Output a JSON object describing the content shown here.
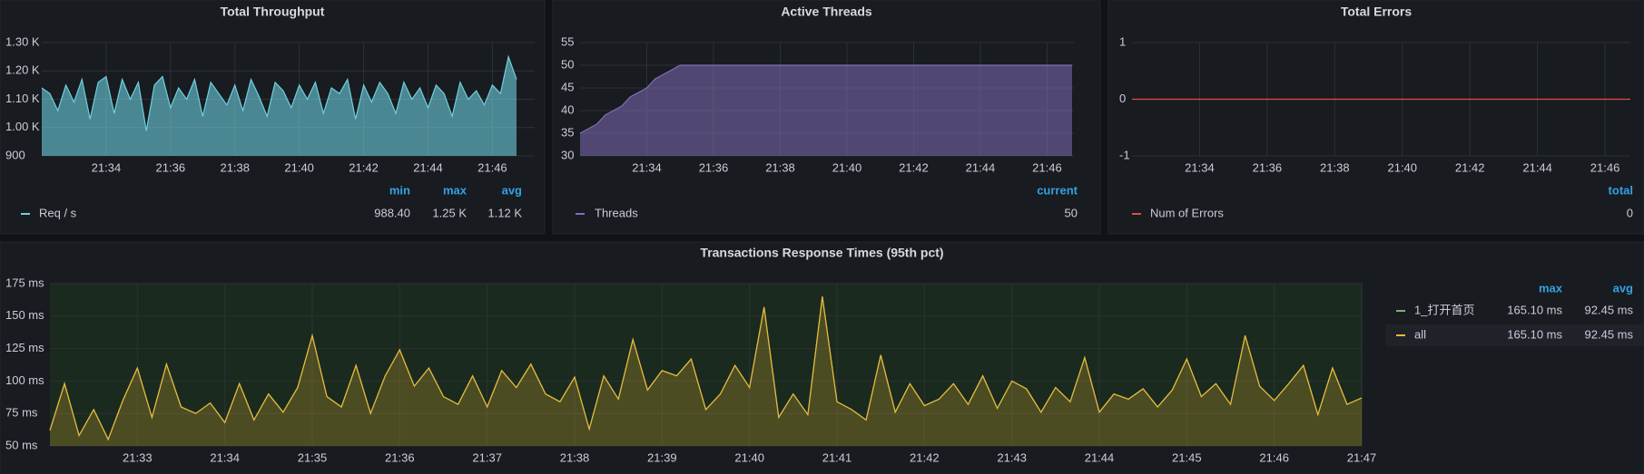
{
  "chart_data": [
    {
      "type": "area",
      "title": "Total Throughput",
      "categories": [
        null,
        null,
        null,
        null,
        null,
        null,
        null,
        null,
        "21:34",
        null,
        null,
        null,
        null,
        null,
        null,
        null,
        "21:36",
        null,
        null,
        null,
        null,
        null,
        null,
        null,
        "21:38",
        null,
        null,
        null,
        null,
        null,
        null,
        null,
        "21:40",
        null,
        null,
        null,
        null,
        null,
        null,
        null,
        "21:42",
        null,
        null,
        null,
        null,
        null,
        null,
        null,
        "21:44",
        null,
        null,
        null,
        null,
        null,
        null,
        null,
        "21:46",
        null,
        null,
        null
      ],
      "series": [
        {
          "name": "Req / s",
          "color": "#6ed0e0",
          "values": [
            1140,
            1120,
            1060,
            1150,
            1090,
            1170,
            1030,
            1160,
            1180,
            1050,
            1170,
            1100,
            1160,
            988.4,
            1150,
            1180,
            1070,
            1140,
            1100,
            1170,
            1040,
            1160,
            1120,
            1080,
            1150,
            1060,
            1170,
            1110,
            1040,
            1160,
            1130,
            1070,
            1150,
            1100,
            1160,
            1050,
            1140,
            1120,
            1170,
            1030,
            1150,
            1090,
            1160,
            1120,
            1050,
            1160,
            1100,
            1140,
            1070,
            1150,
            1120,
            1040,
            1160,
            1100,
            1130,
            1080,
            1150,
            1120,
            1250,
            1170
          ],
          "stats": [
            "988.40",
            "1.25 K",
            "1.12 K"
          ]
        }
      ],
      "legend_columns": [
        "min",
        "max",
        "avg"
      ],
      "ylim": [
        900,
        1300
      ],
      "yticks": [
        900,
        {
          "value": 1000,
          "label": "1.00 K"
        },
        {
          "value": 1100,
          "label": "1.10 K"
        },
        {
          "value": 1200,
          "label": "1.20 K"
        },
        {
          "value": 1300,
          "label": "1.30 K"
        }
      ],
      "grid": true
    },
    {
      "type": "area",
      "title": "Active Threads",
      "categories": [
        null,
        null,
        null,
        null,
        null,
        null,
        null,
        null,
        "21:34",
        null,
        null,
        null,
        null,
        null,
        null,
        null,
        "21:36",
        null,
        null,
        null,
        null,
        null,
        null,
        null,
        "21:38",
        null,
        null,
        null,
        null,
        null,
        null,
        null,
        "21:40",
        null,
        null,
        null,
        null,
        null,
        null,
        null,
        "21:42",
        null,
        null,
        null,
        null,
        null,
        null,
        null,
        "21:44",
        null,
        null,
        null,
        null,
        null,
        null,
        null,
        "21:46",
        null,
        null,
        null
      ],
      "series": [
        {
          "name": "Threads",
          "color": "#806eb7",
          "values": [
            35,
            36,
            37,
            39,
            40,
            41,
            43,
            44,
            45,
            47,
            48,
            49,
            50,
            50,
            50,
            50,
            50,
            50,
            50,
            50,
            50,
            50,
            50,
            50,
            50,
            50,
            50,
            50,
            50,
            50,
            50,
            50,
            50,
            50,
            50,
            50,
            50,
            50,
            50,
            50,
            50,
            50,
            50,
            50,
            50,
            50,
            50,
            50,
            50,
            50,
            50,
            50,
            50,
            50,
            50,
            50,
            50,
            50,
            50,
            50
          ],
          "stats": [
            "50"
          ]
        }
      ],
      "legend_columns": [
        "current"
      ],
      "ylim": [
        30,
        55
      ],
      "yticks": [
        30,
        35,
        40,
        45,
        50,
        55
      ],
      "grid": true
    },
    {
      "type": "line",
      "title": "Total Errors",
      "categories": [
        null,
        null,
        null,
        null,
        null,
        null,
        null,
        null,
        "21:34",
        null,
        null,
        null,
        null,
        null,
        null,
        null,
        "21:36",
        null,
        null,
        null,
        null,
        null,
        null,
        null,
        "21:38",
        null,
        null,
        null,
        null,
        null,
        null,
        null,
        "21:40",
        null,
        null,
        null,
        null,
        null,
        null,
        null,
        "21:42",
        null,
        null,
        null,
        null,
        null,
        null,
        null,
        "21:44",
        null,
        null,
        null,
        null,
        null,
        null,
        null,
        "21:46",
        null,
        null,
        null
      ],
      "series": [
        {
          "name": "Num of Errors",
          "color": "#e24d42",
          "values": [
            0,
            0,
            0,
            0,
            0,
            0,
            0,
            0,
            0,
            0,
            0,
            0,
            0,
            0,
            0,
            0,
            0,
            0,
            0,
            0,
            0,
            0,
            0,
            0,
            0,
            0,
            0,
            0,
            0,
            0,
            0,
            0,
            0,
            0,
            0,
            0,
            0,
            0,
            0,
            0,
            0,
            0,
            0,
            0,
            0,
            0,
            0,
            0,
            0,
            0,
            0,
            0,
            0,
            0,
            0,
            0,
            0,
            0,
            0,
            0
          ],
          "stats": [
            "0"
          ]
        }
      ],
      "legend_columns": [
        "total"
      ],
      "ylim": [
        -1,
        1
      ],
      "yticks": [
        -1,
        0,
        1
      ],
      "grid": true
    },
    {
      "type": "area",
      "title": "Transactions Response Times (95th pct)",
      "categories": [
        null,
        null,
        null,
        null,
        null,
        null,
        "21:33",
        null,
        null,
        null,
        null,
        null,
        "21:34",
        null,
        null,
        null,
        null,
        null,
        "21:35",
        null,
        null,
        null,
        null,
        null,
        "21:36",
        null,
        null,
        null,
        null,
        null,
        "21:37",
        null,
        null,
        null,
        null,
        null,
        "21:38",
        null,
        null,
        null,
        null,
        null,
        "21:39",
        null,
        null,
        null,
        null,
        null,
        "21:40",
        null,
        null,
        null,
        null,
        null,
        "21:41",
        null,
        null,
        null,
        null,
        null,
        "21:42",
        null,
        null,
        null,
        null,
        null,
        "21:43",
        null,
        null,
        null,
        null,
        null,
        "21:44",
        null,
        null,
        null,
        null,
        null,
        "21:45",
        null,
        null,
        null,
        null,
        null,
        "21:46",
        null,
        null,
        null,
        null,
        null,
        "21:47"
      ],
      "series": [
        {
          "name": "1_打开首页",
          "color": "#7eb26d",
          "values": [
            62,
            98,
            58,
            78,
            55,
            85,
            110,
            72,
            113,
            80,
            75,
            83,
            68,
            98,
            70,
            90,
            76,
            95,
            135,
            88,
            80,
            112,
            75,
            104,
            124,
            96,
            110,
            88,
            82,
            104,
            80,
            108,
            95,
            113,
            90,
            84,
            103,
            63,
            104,
            86,
            132,
            93,
            108,
            104,
            117,
            78,
            90,
            112,
            95,
            157,
            72,
            90,
            74,
            165.1,
            84,
            78,
            70,
            120,
            76,
            98,
            81,
            86,
            98,
            82,
            104,
            79,
            100,
            94,
            76,
            95,
            84,
            118,
            76,
            90,
            86,
            94,
            80,
            93,
            117,
            88,
            98,
            82,
            135,
            96,
            85,
            98,
            112,
            74,
            110,
            82,
            87
          ],
          "stats": [
            "165.10 ms",
            "92.45 ms"
          ]
        },
        {
          "name": "all",
          "color": "#eab839",
          "values": [
            62,
            98,
            58,
            78,
            55,
            85,
            110,
            72,
            113,
            80,
            75,
            83,
            68,
            98,
            70,
            90,
            76,
            95,
            135,
            88,
            80,
            112,
            75,
            104,
            124,
            96,
            110,
            88,
            82,
            104,
            80,
            108,
            95,
            113,
            90,
            84,
            103,
            63,
            104,
            86,
            132,
            93,
            108,
            104,
            117,
            78,
            90,
            112,
            95,
            157,
            72,
            90,
            74,
            165.1,
            84,
            78,
            70,
            120,
            76,
            98,
            81,
            86,
            98,
            82,
            104,
            79,
            100,
            94,
            76,
            95,
            84,
            118,
            76,
            90,
            86,
            94,
            80,
            93,
            117,
            88,
            98,
            82,
            135,
            96,
            85,
            98,
            112,
            74,
            110,
            82,
            87
          ],
          "stats": [
            "165.10 ms",
            "92.45 ms"
          ]
        }
      ],
      "legend_columns": [
        "max",
        "avg"
      ],
      "ylim": [
        50,
        175
      ],
      "yticks": [
        {
          "value": 50,
          "label": "50 ms"
        },
        {
          "value": 75,
          "label": "75 ms"
        },
        {
          "value": 100,
          "label": "100 ms"
        },
        {
          "value": 125,
          "label": "125 ms"
        },
        {
          "value": 150,
          "label": "150 ms"
        },
        {
          "value": 175,
          "label": "175 ms"
        }
      ],
      "grid": true
    }
  ]
}
